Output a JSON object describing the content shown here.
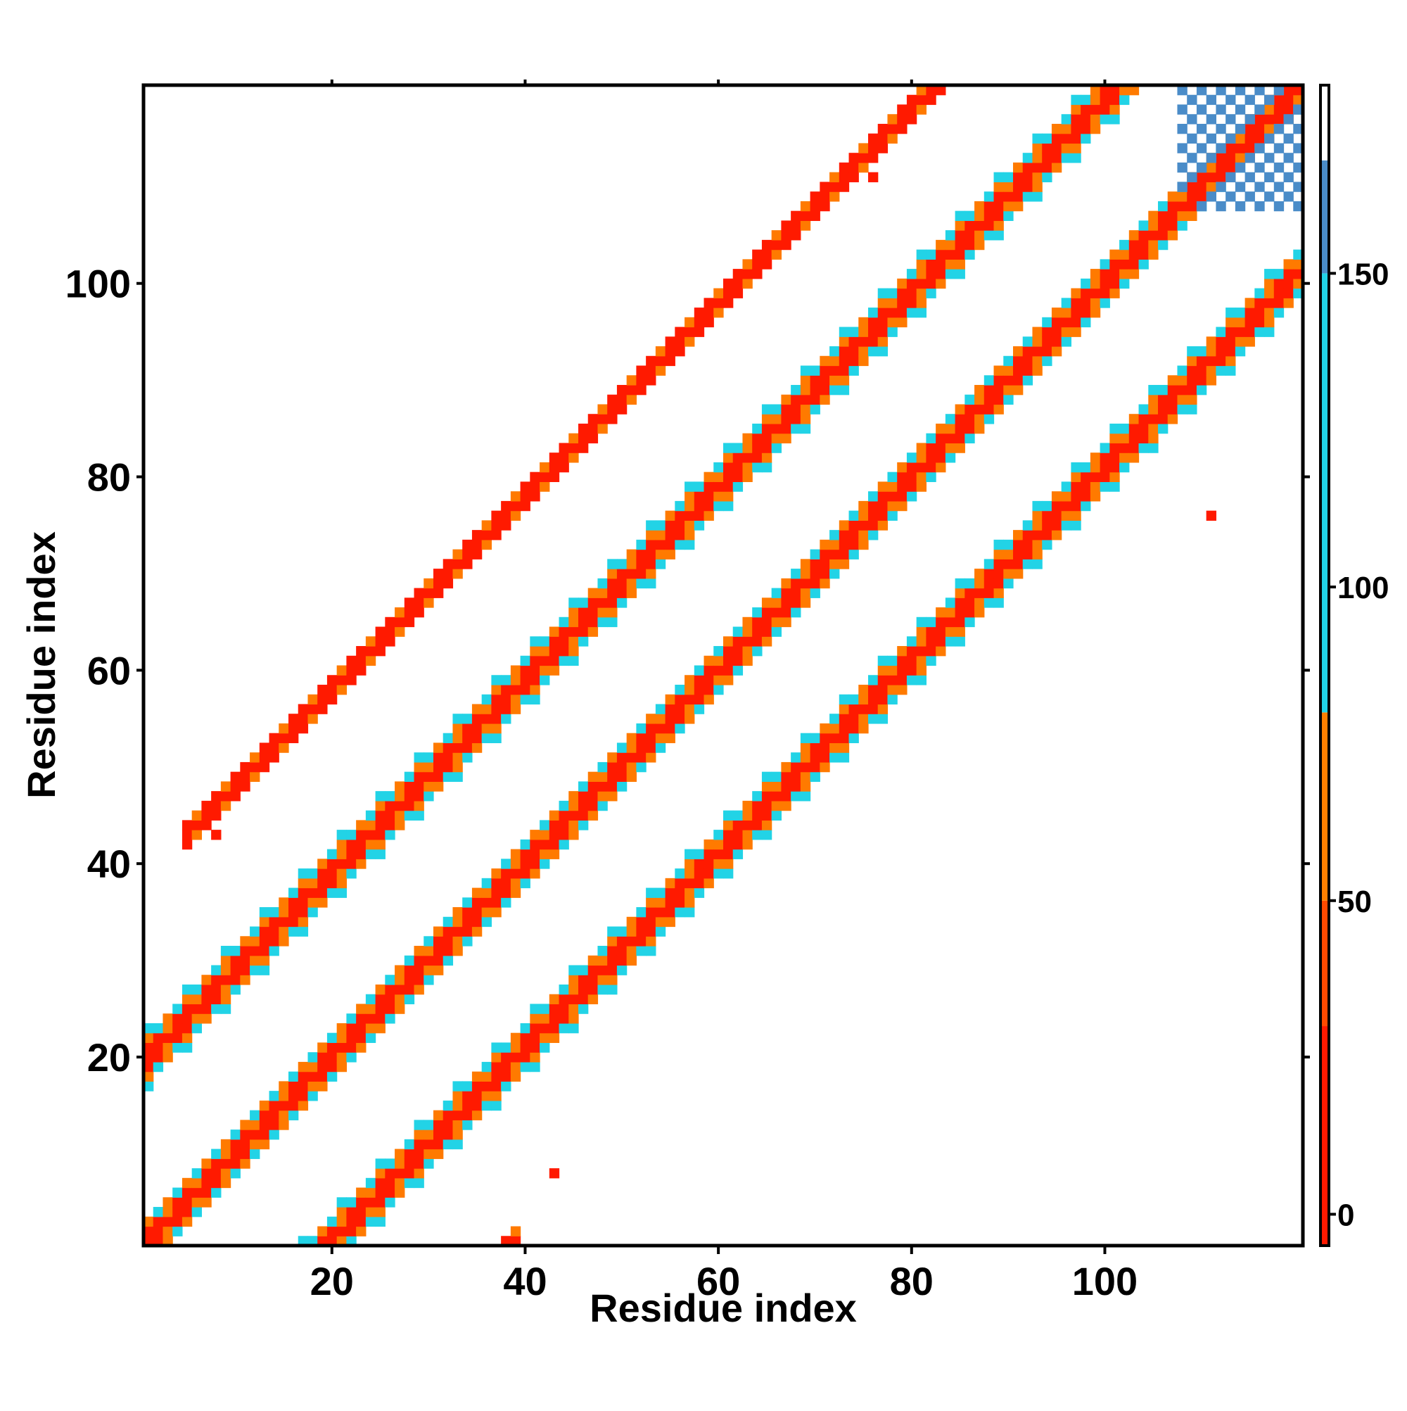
{
  "chart_data": {
    "type": "heatmap",
    "title": "",
    "xlabel": "Residue index",
    "ylabel": "Residue index",
    "xlim": [
      1,
      120
    ],
    "ylim": [
      1,
      120
    ],
    "x_ticks": [
      20,
      40,
      60,
      80,
      100
    ],
    "y_ticks": [
      20,
      40,
      60,
      80,
      100
    ],
    "x_tick_labels": [
      "20",
      "40",
      "60",
      "80",
      "100"
    ],
    "y_tick_labels": [
      "20",
      "40",
      "60",
      "80",
      "100"
    ],
    "grid": false,
    "legend": "none",
    "colorbar": {
      "position": "right",
      "range": [
        -5,
        180
      ],
      "ticks": [
        0,
        50,
        100,
        150
      ],
      "tick_labels": [
        "0",
        "50",
        "100",
        "150"
      ],
      "segments": [
        {
          "from": -5,
          "to": 30,
          "color": "#ff1a00"
        },
        {
          "from": 30,
          "to": 50,
          "color": "#ff4a00"
        },
        {
          "from": 50,
          "to": 80,
          "color": "#ff8000"
        },
        {
          "from": 80,
          "to": 150,
          "color": "#22d3e6"
        },
        {
          "from": 150,
          "to": 168,
          "color": "#4a8cc8"
        },
        {
          "from": 168,
          "to": 180,
          "color": "#ffffff"
        }
      ]
    },
    "colors": {
      "red": "#ff1a00",
      "dark_red": "#f20d00",
      "orange": "#ff7a00",
      "cyan": "#22d3e6",
      "blue": "#4a8cc8"
    },
    "bands": [
      {
        "offset": -38,
        "start": 1,
        "end": 39,
        "width": 1,
        "color": "red",
        "min_x": 1,
        "max_x": 120
      },
      {
        "offset": 0,
        "start": 1,
        "end": 120,
        "width": 2,
        "color": "red",
        "min_x": 1,
        "max_x": 120
      },
      {
        "offset": 19,
        "start": 1,
        "end": 120,
        "width": 3,
        "color": "red",
        "min_x": 1,
        "max_x": 120
      },
      {
        "offset": -19,
        "start": 1,
        "end": 120,
        "width": 3,
        "color": "red",
        "min_x": 1,
        "max_x": 120
      },
      {
        "offset": 38,
        "start": 5,
        "end": 105,
        "width": 1,
        "color": "red",
        "min_x": 1,
        "max_x": 120
      }
    ],
    "cells": [
      {
        "x": 43,
        "y": 8,
        "value": 10
      },
      {
        "x": 8,
        "y": 43,
        "value": 10
      },
      {
        "x": 76,
        "y": 111,
        "value": 10
      },
      {
        "x": 111,
        "y": 76,
        "value": 10
      }
    ],
    "corner_patch": {
      "x": [
        108,
        120
      ],
      "y": [
        108,
        120
      ],
      "value": 160
    }
  }
}
